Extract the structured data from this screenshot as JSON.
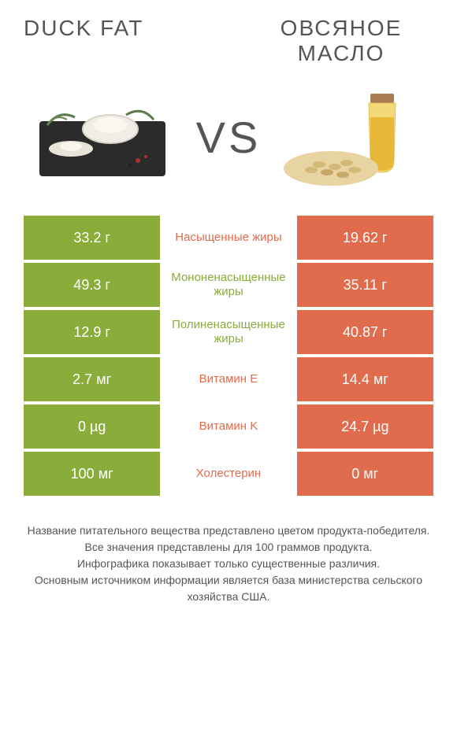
{
  "titles": {
    "left": "DUCK FAT",
    "right": "ОВСЯНОЕ МАСЛО",
    "vs": "VS"
  },
  "colors": {
    "left": "#8aac3a",
    "right": "#e06c4d",
    "mid_text_green": "#8aac3a",
    "mid_text_orange": "#e06c4d",
    "background": "#ffffff",
    "footer_text": "#555555"
  },
  "rows": [
    {
      "left_value": "33.2 г",
      "label": "Насыщенные жиры",
      "right_value": "19.62 г",
      "winner": "left"
    },
    {
      "left_value": "49.3 г",
      "label": "Мононенасыщенные жиры",
      "right_value": "35.11 г",
      "winner": "left"
    },
    {
      "left_value": "12.9 г",
      "label": "Полиненасыщенные жиры",
      "right_value": "40.87 г",
      "winner": "right"
    },
    {
      "left_value": "2.7 мг",
      "label": "Витамин E",
      "right_value": "14.4 мг",
      "winner": "right"
    },
    {
      "left_value": "0 µg",
      "label": "Витамин K",
      "right_value": "24.7 µg",
      "winner": "right"
    },
    {
      "left_value": "100 мг",
      "label": "Холестерин",
      "right_value": "0 мг",
      "winner": "right"
    }
  ],
  "footer": [
    "Название питательного вещества представлено цветом продукта-победителя.",
    "Все значения представлены для 100 граммов продукта.",
    "Инфографика показывает только существенные различия.",
    "Основным источником информации является база министерства сельского хозяйства США."
  ]
}
